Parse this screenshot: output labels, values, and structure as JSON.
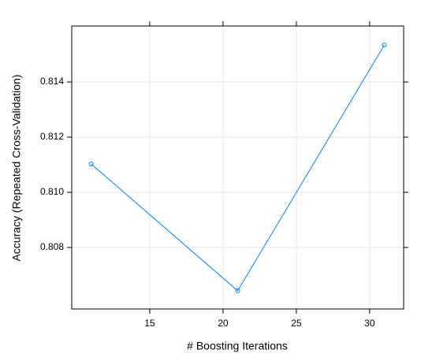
{
  "chart_data": {
    "type": "line",
    "x_label": "# Boosting Iterations",
    "y_label": "Accuracy (Repeated Cross-Validation)",
    "x": [
      11,
      21,
      31
    ],
    "series": [
      {
        "color": "#0080ff",
        "values": [
          0.81103,
          0.80643,
          0.81534
        ]
      }
    ],
    "xlim": [
      9.68,
      32.32
    ],
    "xticks": [
      15,
      20,
      25,
      30
    ],
    "ylim": [
      0.80577,
      0.81603
    ],
    "yticks": [
      0.808,
      0.81,
      0.812,
      0.814
    ],
    "grid": true
  }
}
